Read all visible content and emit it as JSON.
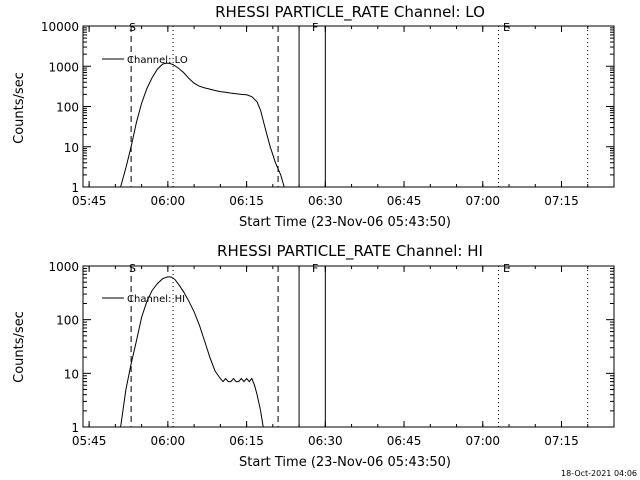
{
  "footer": {
    "timestamp": "18-Oct-2021 04:06"
  },
  "chart_data": [
    {
      "type": "line",
      "title": "RHESSI PARTICLE_RATE Channel: LO",
      "xlabel": "Start Time (23-Nov-06 05:43:50)",
      "ylabel": "Counts/sec",
      "yscale": "log",
      "xlim": [
        "05:43:50",
        "07:25:00"
      ],
      "ylim": [
        1,
        10000
      ],
      "x_ticks": [
        "05:45",
        "06:00",
        "06:15",
        "06:30",
        "06:45",
        "07:00",
        "07:15"
      ],
      "y_ticks": [
        "1",
        "10",
        "100",
        "1000",
        "10000"
      ],
      "legend": {
        "position": "top-left",
        "label": "Channel: LO"
      },
      "flags": {
        "start": "S",
        "saa": "F",
        "eclipse": "E"
      },
      "markers": {
        "dashed": [
          "05:53:00",
          "06:21:00"
        ],
        "dotted": [
          "06:01:00",
          "07:03:00",
          "07:20:00"
        ],
        "solid": [
          "06:25:00",
          "06:30:00"
        ]
      },
      "series": [
        {
          "name": "Channel: LO",
          "x": [
            "05:51:00",
            "05:52:00",
            "05:53:00",
            "05:54:00",
            "05:55:00",
            "05:56:00",
            "05:57:00",
            "05:58:00",
            "05:59:00",
            "05:59:40",
            "06:00:20",
            "06:01:00",
            "06:02:00",
            "06:03:00",
            "06:04:00",
            "06:05:00",
            "06:06:00",
            "06:07:00",
            "06:08:00",
            "06:09:00",
            "06:10:00",
            "06:11:00",
            "06:12:00",
            "06:13:00",
            "06:14:00",
            "06:15:00",
            "06:16:00",
            "06:17:00",
            "06:17:40",
            "06:18:30",
            "06:19:30",
            "06:20:30",
            "06:21:30",
            "06:22:10"
          ],
          "y": [
            1,
            3,
            10,
            40,
            120,
            280,
            520,
            850,
            1130,
            1200,
            1180,
            1100,
            900,
            700,
            500,
            380,
            320,
            290,
            270,
            250,
            235,
            225,
            215,
            208,
            200,
            195,
            175,
            130,
            80,
            30,
            10,
            4,
            2,
            1
          ]
        }
      ]
    },
    {
      "type": "line",
      "title": "RHESSI PARTICLE_RATE Channel: HI",
      "xlabel": "Start Time (23-Nov-06 05:43:50)",
      "ylabel": "Counts/sec",
      "yscale": "log",
      "xlim": [
        "05:43:50",
        "07:25:00"
      ],
      "ylim": [
        1,
        1000
      ],
      "x_ticks": [
        "05:45",
        "06:00",
        "06:15",
        "06:30",
        "06:45",
        "07:00",
        "07:15"
      ],
      "y_ticks": [
        "1",
        "10",
        "100",
        "1000"
      ],
      "legend": {
        "position": "top-left",
        "label": "Channel: HI"
      },
      "flags": {
        "start": "S",
        "saa": "F",
        "eclipse": "E"
      },
      "markers": {
        "dashed": [
          "05:53:00",
          "06:21:00"
        ],
        "dotted": [
          "06:01:00",
          "07:03:00",
          "07:20:00"
        ],
        "solid": [
          "06:25:00",
          "06:30:00"
        ]
      },
      "series": [
        {
          "name": "Channel: HI",
          "x": [
            "05:51:00",
            "05:52:00",
            "05:53:00",
            "05:54:00",
            "05:55:00",
            "05:56:00",
            "05:57:00",
            "05:58:00",
            "05:59:00",
            "06:00:00",
            "06:00:40",
            "06:01:20",
            "06:02:00",
            "06:03:00",
            "06:04:00",
            "06:05:00",
            "06:06:00",
            "06:07:00",
            "06:08:00",
            "06:09:00",
            "06:10:00",
            "06:10:30",
            "06:11:00",
            "06:11:30",
            "06:12:00",
            "06:12:30",
            "06:13:00",
            "06:13:30",
            "06:14:00",
            "06:14:30",
            "06:15:00",
            "06:15:30",
            "06:16:00",
            "06:16:30",
            "06:17:00",
            "06:17:40",
            "06:18:10"
          ],
          "y": [
            1,
            5,
            15,
            40,
            110,
            220,
            350,
            470,
            580,
            630,
            620,
            560,
            460,
            330,
            220,
            140,
            80,
            40,
            20,
            11,
            8,
            7,
            8,
            7,
            7,
            8,
            7,
            7,
            8,
            7,
            8,
            7,
            8,
            6,
            4,
            2,
            1
          ]
        }
      ]
    }
  ]
}
